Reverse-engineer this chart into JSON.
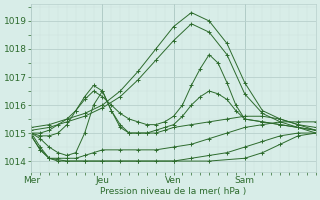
{
  "title": "",
  "xlabel": "Pression niveau de la mer( hPa )",
  "ylabel": "",
  "bg_color": "#d8ede8",
  "line_color": "#2d6b2d",
  "grid_color_major": "#b8d0cc",
  "grid_color_minor": "#cce0dc",
  "text_color": "#2d6b2d",
  "ylim": [
    1013.6,
    1019.6
  ],
  "xlim": [
    0,
    96
  ],
  "yticks": [
    1014,
    1015,
    1016,
    1017,
    1018,
    1019
  ],
  "xtick_positions": [
    0,
    24,
    48,
    72,
    96
  ],
  "xtick_labels": [
    "Mer",
    "Jeu",
    "Ven",
    "Sam",
    ""
  ],
  "series": [
    {
      "x": [
        0,
        6,
        12,
        18,
        24,
        30,
        36,
        42,
        48,
        54,
        60,
        66,
        72,
        78,
        84,
        90,
        96
      ],
      "y": [
        1015.2,
        1015.3,
        1015.5,
        1015.7,
        1016.0,
        1016.5,
        1017.2,
        1018.0,
        1018.8,
        1019.3,
        1019.0,
        1018.2,
        1016.8,
        1015.8,
        1015.5,
        1015.3,
        1015.2
      ]
    },
    {
      "x": [
        0,
        6,
        12,
        18,
        24,
        30,
        36,
        42,
        48,
        54,
        60,
        66,
        72,
        78,
        84,
        90,
        96
      ],
      "y": [
        1015.1,
        1015.2,
        1015.4,
        1015.6,
        1015.9,
        1016.3,
        1016.9,
        1017.6,
        1018.3,
        1018.9,
        1018.6,
        1017.8,
        1016.4,
        1015.7,
        1015.4,
        1015.2,
        1015.1
      ]
    },
    {
      "x": [
        0,
        3,
        6,
        9,
        12,
        15,
        18,
        21,
        24,
        27,
        30,
        33,
        36,
        39,
        42,
        45,
        48,
        51,
        54,
        57,
        60,
        63,
        66,
        69,
        72,
        78,
        84,
        90,
        96
      ],
      "y": [
        1015.0,
        1015.0,
        1015.1,
        1015.3,
        1015.5,
        1015.8,
        1016.2,
        1016.5,
        1016.3,
        1016.0,
        1015.7,
        1015.5,
        1015.4,
        1015.3,
        1015.3,
        1015.4,
        1015.6,
        1016.0,
        1016.7,
        1017.3,
        1017.8,
        1017.5,
        1016.8,
        1016.0,
        1015.5,
        1015.4,
        1015.3,
        1015.2,
        1015.1
      ]
    },
    {
      "x": [
        0,
        3,
        6,
        9,
        12,
        15,
        18,
        21,
        24,
        27,
        30,
        33,
        36,
        39,
        42,
        45,
        48,
        51,
        54,
        57,
        60,
        63,
        66,
        69,
        72,
        78,
        84,
        90,
        96
      ],
      "y": [
        1015.0,
        1014.9,
        1014.9,
        1015.0,
        1015.3,
        1015.8,
        1016.3,
        1016.7,
        1016.5,
        1015.8,
        1015.3,
        1015.0,
        1015.0,
        1015.0,
        1015.1,
        1015.2,
        1015.3,
        1015.6,
        1016.0,
        1016.3,
        1016.5,
        1016.4,
        1016.2,
        1015.8,
        1015.5,
        1015.4,
        1015.3,
        1015.2,
        1015.0
      ]
    },
    {
      "x": [
        0,
        3,
        6,
        9,
        12,
        15,
        18,
        21,
        24,
        27,
        30,
        33,
        36,
        39,
        42,
        45,
        48,
        54,
        60,
        66,
        72,
        78,
        84,
        90,
        96
      ],
      "y": [
        1015.0,
        1014.8,
        1014.5,
        1014.3,
        1014.2,
        1014.3,
        1015.0,
        1016.0,
        1016.5,
        1015.8,
        1015.2,
        1015.0,
        1015.0,
        1015.0,
        1015.0,
        1015.1,
        1015.2,
        1015.3,
        1015.4,
        1015.5,
        1015.6,
        1015.6,
        1015.5,
        1015.3,
        1015.1
      ]
    },
    {
      "x": [
        0,
        3,
        6,
        9,
        12,
        15,
        18,
        21,
        24,
        30,
        36,
        42,
        48,
        54,
        60,
        66,
        72,
        78,
        84,
        90,
        96
      ],
      "y": [
        1014.9,
        1014.4,
        1014.1,
        1014.1,
        1014.1,
        1014.1,
        1014.2,
        1014.3,
        1014.4,
        1014.4,
        1014.4,
        1014.4,
        1014.5,
        1014.6,
        1014.8,
        1015.0,
        1015.2,
        1015.3,
        1015.4,
        1015.4,
        1015.4
      ]
    },
    {
      "x": [
        0,
        3,
        6,
        9,
        12,
        18,
        24,
        30,
        36,
        42,
        48,
        54,
        60,
        66,
        72,
        78,
        84,
        90,
        96
      ],
      "y": [
        1014.9,
        1014.4,
        1014.1,
        1014.0,
        1014.0,
        1014.0,
        1014.0,
        1014.0,
        1014.0,
        1014.0,
        1014.0,
        1014.1,
        1014.2,
        1014.3,
        1014.5,
        1014.7,
        1014.9,
        1015.0,
        1015.0
      ]
    },
    {
      "x": [
        0,
        3,
        6,
        12,
        18,
        24,
        36,
        48,
        60,
        72,
        78,
        84,
        90,
        96
      ],
      "y": [
        1015.0,
        1014.5,
        1014.1,
        1014.0,
        1014.0,
        1014.0,
        1014.0,
        1014.0,
        1014.0,
        1014.1,
        1014.3,
        1014.6,
        1014.9,
        1015.0
      ]
    }
  ]
}
